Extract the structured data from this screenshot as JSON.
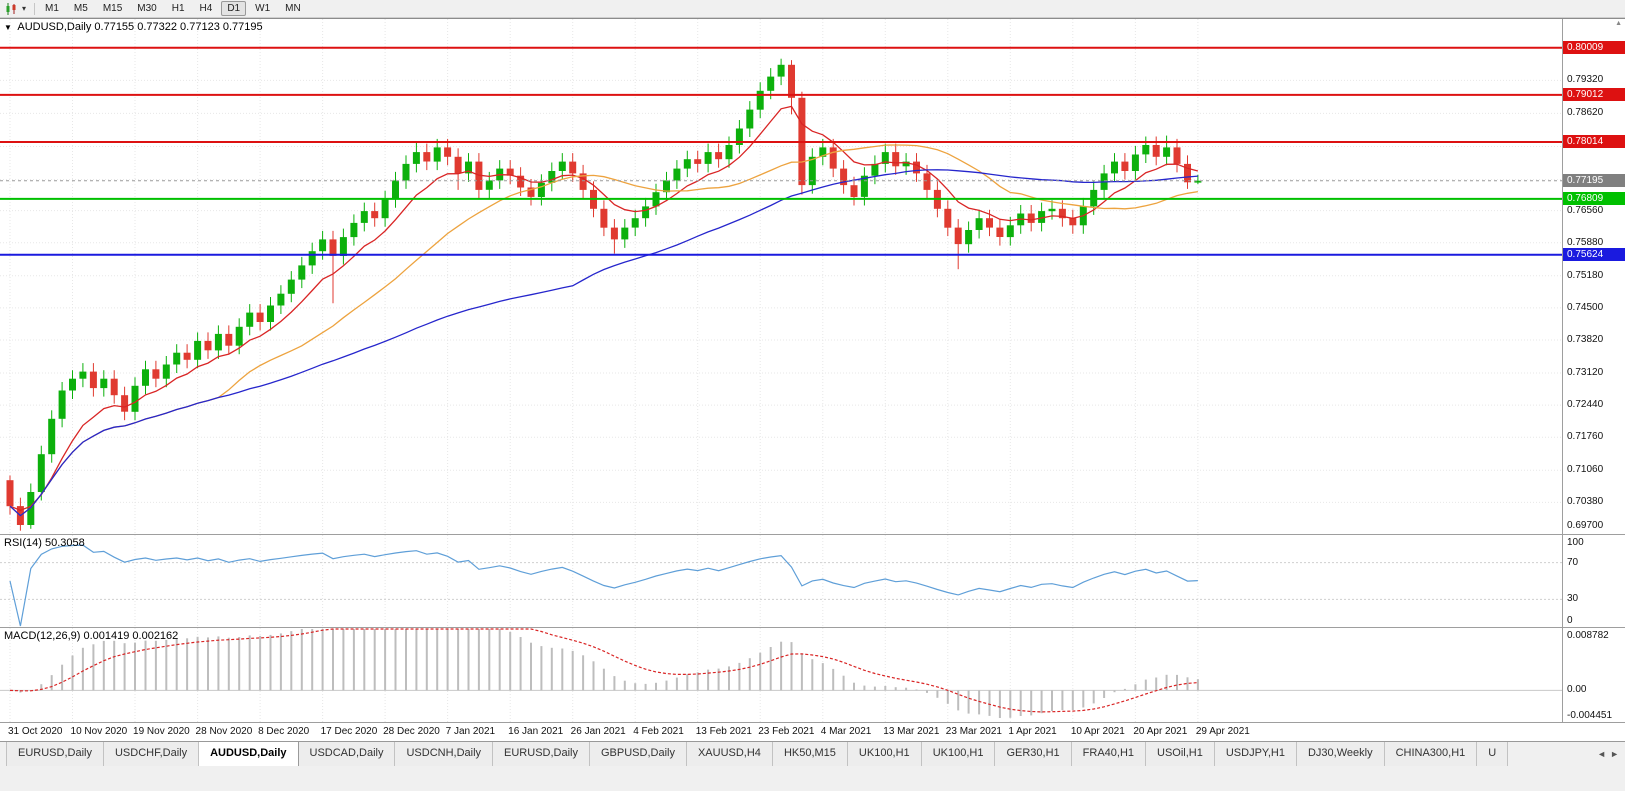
{
  "toolbar": {
    "timeframes": [
      {
        "label": "M1",
        "active": false
      },
      {
        "label": "M5",
        "active": false
      },
      {
        "label": "M15",
        "active": false
      },
      {
        "label": "M30",
        "active": false
      },
      {
        "label": "H1",
        "active": false
      },
      {
        "label": "H4",
        "active": false
      },
      {
        "label": "D1",
        "active": true
      },
      {
        "label": "W1",
        "active": false
      },
      {
        "label": "MN",
        "active": false
      }
    ]
  },
  "icons": {
    "timeframe_caret": "▾",
    "scroll_up": "▲",
    "tabs_scroll_left": "◄",
    "tabs_scroll_right": "►"
  },
  "chart_header": {
    "collapse_icon": "▼",
    "title": "AUDUSD,Daily",
    "ohlc": "0.77155 0.77322 0.77123 0.77195"
  },
  "chart_data": {
    "type": "candlestick",
    "symbol": "AUDUSD",
    "timeframe": "Daily",
    "grid": true,
    "ylim": [
      0.6971,
      0.8062
    ],
    "y_ticks": [
      "0.79320",
      "0.78620",
      "0.77920",
      "0.77220",
      "0.76560",
      "0.75880",
      "0.75180",
      "0.74500",
      "0.73820",
      "0.73120",
      "0.72440",
      "0.71760",
      "0.71060",
      "0.70380",
      "0.69700"
    ],
    "x_labels": [
      "31 Oct 2020",
      "10 Nov 2020",
      "19 Nov 2020",
      "28 Nov 2020",
      "8 Dec 2020",
      "17 Dec 2020",
      "28 Dec 2020",
      "7 Jan 2021",
      "16 Jan 2021",
      "26 Jan 2021",
      "4 Feb 2021",
      "13 Feb 2021",
      "23 Feb 2021",
      "4 Mar 2021",
      "13 Mar 2021",
      "23 Mar 2021",
      "1 Apr 2021",
      "10 Apr 2021",
      "20 Apr 2021",
      "29 Apr 2021"
    ],
    "bars_per_label": 6,
    "colors": {
      "up": "#0cb00c",
      "down": "#e03a30"
    },
    "candles": [
      [
        0.7085,
        0.7095,
        0.7012,
        0.703
      ],
      [
        0.703,
        0.7048,
        0.6978,
        0.699
      ],
      [
        0.699,
        0.7078,
        0.6982,
        0.706
      ],
      [
        0.706,
        0.7158,
        0.7042,
        0.714
      ],
      [
        0.714,
        0.7233,
        0.7122,
        0.7215
      ],
      [
        0.7215,
        0.7293,
        0.7197,
        0.7275
      ],
      [
        0.7275,
        0.7318,
        0.7257,
        0.73
      ],
      [
        0.73,
        0.7333,
        0.7282,
        0.7315
      ],
      [
        0.7315,
        0.7333,
        0.7262,
        0.728
      ],
      [
        0.728,
        0.7318,
        0.7262,
        0.73
      ],
      [
        0.73,
        0.7318,
        0.7247,
        0.7265
      ],
      [
        0.7265,
        0.7283,
        0.7212,
        0.723
      ],
      [
        0.723,
        0.7303,
        0.7212,
        0.7285
      ],
      [
        0.7285,
        0.7338,
        0.7267,
        0.732
      ],
      [
        0.732,
        0.7338,
        0.7282,
        0.73
      ],
      [
        0.73,
        0.7348,
        0.7282,
        0.733
      ],
      [
        0.733,
        0.7373,
        0.7312,
        0.7355
      ],
      [
        0.7355,
        0.7373,
        0.7322,
        0.734
      ],
      [
        0.734,
        0.7398,
        0.7322,
        0.738
      ],
      [
        0.738,
        0.7398,
        0.7342,
        0.736
      ],
      [
        0.736,
        0.7413,
        0.7342,
        0.7395
      ],
      [
        0.7395,
        0.7413,
        0.7352,
        0.737
      ],
      [
        0.737,
        0.7428,
        0.7352,
        0.741
      ],
      [
        0.741,
        0.7458,
        0.7392,
        0.744
      ],
      [
        0.744,
        0.7458,
        0.7402,
        0.742
      ],
      [
        0.742,
        0.7473,
        0.7402,
        0.7455
      ],
      [
        0.7455,
        0.7498,
        0.7437,
        0.748
      ],
      [
        0.748,
        0.7528,
        0.7462,
        0.751
      ],
      [
        0.751,
        0.7558,
        0.7492,
        0.754
      ],
      [
        0.754,
        0.7588,
        0.7522,
        0.757
      ],
      [
        0.757,
        0.7613,
        0.7552,
        0.7595
      ],
      [
        0.7595,
        0.7613,
        0.746,
        0.756
      ],
      [
        0.756,
        0.7618,
        0.7542,
        0.76
      ],
      [
        0.76,
        0.7648,
        0.7582,
        0.763
      ],
      [
        0.763,
        0.7673,
        0.7612,
        0.7655
      ],
      [
        0.7655,
        0.7673,
        0.7622,
        0.764
      ],
      [
        0.764,
        0.7698,
        0.7622,
        0.768
      ],
      [
        0.768,
        0.7738,
        0.7662,
        0.772
      ],
      [
        0.772,
        0.7773,
        0.7702,
        0.7755
      ],
      [
        0.7755,
        0.78,
        0.7737,
        0.778
      ],
      [
        0.778,
        0.7798,
        0.7742,
        0.776
      ],
      [
        0.776,
        0.7808,
        0.7742,
        0.779
      ],
      [
        0.779,
        0.7808,
        0.7752,
        0.777
      ],
      [
        0.777,
        0.7788,
        0.77,
        0.7735
      ],
      [
        0.7735,
        0.7778,
        0.7717,
        0.776
      ],
      [
        0.776,
        0.7778,
        0.7682,
        0.77
      ],
      [
        0.77,
        0.7738,
        0.7682,
        0.772
      ],
      [
        0.772,
        0.7763,
        0.7702,
        0.7745
      ],
      [
        0.7745,
        0.7763,
        0.7712,
        0.773
      ],
      [
        0.773,
        0.7748,
        0.7687,
        0.7705
      ],
      [
        0.7705,
        0.7723,
        0.7667,
        0.7685
      ],
      [
        0.7685,
        0.7733,
        0.7667,
        0.7715
      ],
      [
        0.7715,
        0.7758,
        0.7697,
        0.774
      ],
      [
        0.774,
        0.7778,
        0.7722,
        0.776
      ],
      [
        0.776,
        0.7778,
        0.7717,
        0.7735
      ],
      [
        0.7735,
        0.7753,
        0.7682,
        0.77
      ],
      [
        0.77,
        0.7718,
        0.7642,
        0.766
      ],
      [
        0.766,
        0.7678,
        0.7602,
        0.762
      ],
      [
        0.762,
        0.7638,
        0.7565,
        0.7595
      ],
      [
        0.7595,
        0.7638,
        0.7577,
        0.762
      ],
      [
        0.762,
        0.7658,
        0.7602,
        0.764
      ],
      [
        0.764,
        0.7683,
        0.7622,
        0.7665
      ],
      [
        0.7665,
        0.7713,
        0.7647,
        0.7695
      ],
      [
        0.7695,
        0.7738,
        0.7677,
        0.772
      ],
      [
        0.772,
        0.7763,
        0.7702,
        0.7745
      ],
      [
        0.7745,
        0.7783,
        0.7727,
        0.7765
      ],
      [
        0.7765,
        0.7783,
        0.7737,
        0.7755
      ],
      [
        0.7755,
        0.7798,
        0.7737,
        0.778
      ],
      [
        0.778,
        0.7798,
        0.7747,
        0.7765
      ],
      [
        0.7765,
        0.7813,
        0.7747,
        0.7795
      ],
      [
        0.7795,
        0.7848,
        0.7777,
        0.783
      ],
      [
        0.783,
        0.7888,
        0.7812,
        0.787
      ],
      [
        0.787,
        0.7928,
        0.7852,
        0.791
      ],
      [
        0.791,
        0.7958,
        0.7892,
        0.794
      ],
      [
        0.794,
        0.7978,
        0.7922,
        0.7965
      ],
      [
        0.7965,
        0.7975,
        0.786,
        0.7895
      ],
      [
        0.7895,
        0.7908,
        0.769,
        0.771
      ],
      [
        0.771,
        0.7788,
        0.7692,
        0.777
      ],
      [
        0.777,
        0.7808,
        0.7752,
        0.779
      ],
      [
        0.779,
        0.7808,
        0.7727,
        0.7745
      ],
      [
        0.7745,
        0.7763,
        0.7692,
        0.771
      ],
      [
        0.771,
        0.7728,
        0.7667,
        0.7685
      ],
      [
        0.7685,
        0.7748,
        0.7667,
        0.773
      ],
      [
        0.773,
        0.7773,
        0.7712,
        0.7755
      ],
      [
        0.7755,
        0.7798,
        0.7737,
        0.778
      ],
      [
        0.778,
        0.7798,
        0.7732,
        0.775
      ],
      [
        0.775,
        0.7778,
        0.7732,
        0.776
      ],
      [
        0.776,
        0.7778,
        0.7717,
        0.7735
      ],
      [
        0.7735,
        0.7753,
        0.7682,
        0.77
      ],
      [
        0.77,
        0.7718,
        0.7642,
        0.766
      ],
      [
        0.766,
        0.7678,
        0.7602,
        0.762
      ],
      [
        0.762,
        0.7638,
        0.7532,
        0.7585
      ],
      [
        0.7585,
        0.7633,
        0.7567,
        0.7615
      ],
      [
        0.7615,
        0.7658,
        0.7597,
        0.764
      ],
      [
        0.764,
        0.7658,
        0.7602,
        0.762
      ],
      [
        0.762,
        0.7638,
        0.7582,
        0.76
      ],
      [
        0.76,
        0.7643,
        0.7582,
        0.7625
      ],
      [
        0.7625,
        0.7668,
        0.7607,
        0.765
      ],
      [
        0.765,
        0.7668,
        0.7612,
        0.763
      ],
      [
        0.763,
        0.7673,
        0.7612,
        0.7655
      ],
      [
        0.7655,
        0.7678,
        0.7637,
        0.766
      ],
      [
        0.766,
        0.7678,
        0.7622,
        0.764
      ],
      [
        0.764,
        0.7658,
        0.7607,
        0.7625
      ],
      [
        0.7625,
        0.7683,
        0.7607,
        0.7665
      ],
      [
        0.7665,
        0.7718,
        0.7647,
        0.77
      ],
      [
        0.77,
        0.7753,
        0.7682,
        0.7735
      ],
      [
        0.7735,
        0.7778,
        0.7717,
        0.776
      ],
      [
        0.776,
        0.7778,
        0.7722,
        0.774
      ],
      [
        0.774,
        0.7793,
        0.7722,
        0.7775
      ],
      [
        0.7775,
        0.7813,
        0.7757,
        0.7795
      ],
      [
        0.7795,
        0.7813,
        0.7752,
        0.777
      ],
      [
        0.777,
        0.7815,
        0.7752,
        0.779
      ],
      [
        0.779,
        0.7808,
        0.7737,
        0.7755
      ],
      [
        0.7755,
        0.7773,
        0.7702,
        0.7716
      ],
      [
        0.77155,
        0.77322,
        0.77123,
        0.77195
      ]
    ],
    "moving_averages": [
      {
        "type": "ema",
        "period": 8,
        "color": "#d92525"
      },
      {
        "type": "sma",
        "period": 21,
        "color": "#eda33f"
      },
      {
        "type": "sma",
        "period": 55,
        "color": "#2626cc"
      }
    ],
    "levels": [
      {
        "value": 0.80009,
        "label": "0.80009",
        "color": "#dd1111"
      },
      {
        "value": 0.79012,
        "label": "0.79012",
        "color": "#dd1111"
      },
      {
        "value": 0.78014,
        "label": "0.78014",
        "color": "#dd1111"
      },
      {
        "value": 0.76809,
        "label": "0.76809",
        "color": "#00c000"
      },
      {
        "value": 0.75624,
        "label": "0.75624",
        "color": "#1a1adf"
      }
    ],
    "current_price": {
      "value": 0.77195,
      "label": "0.77195",
      "color": "#808080"
    },
    "indicators": [
      {
        "name": "RSI",
        "label": "RSI(14) 50.3058",
        "period": 14,
        "color": "#5f9fd8",
        "levels": [
          70,
          30
        ],
        "scale": [
          "100",
          "70",
          "30",
          "0"
        ],
        "range": [
          0,
          100
        ]
      },
      {
        "name": "MACD",
        "label": "MACD(12,26,9) 0.001419 0.002162",
        "fast": 12,
        "slow": 26,
        "signal": 9,
        "scale": [
          "0.008782",
          "0.00",
          "-0.004451"
        ],
        "range": [
          -0.004451,
          0.008782
        ],
        "histogram_color": "#bdbdbd",
        "signal_color": "#d92525"
      }
    ]
  },
  "tabs": {
    "items": [
      {
        "label": "EURUSD,Daily",
        "active": false
      },
      {
        "label": "USDCHF,Daily",
        "active": false
      },
      {
        "label": "AUDUSD,Daily",
        "active": true
      },
      {
        "label": "USDCAD,Daily",
        "active": false
      },
      {
        "label": "USDCNH,Daily",
        "active": false
      },
      {
        "label": "EURUSD,Daily",
        "active": false
      },
      {
        "label": "GBPUSD,Daily",
        "active": false
      },
      {
        "label": "XAUUSD,H4",
        "active": false
      },
      {
        "label": "HK50,M15",
        "active": false
      },
      {
        "label": "UK100,H1",
        "active": false
      },
      {
        "label": "UK100,H1",
        "active": false
      },
      {
        "label": "GER30,H1",
        "active": false
      },
      {
        "label": "FRA40,H1",
        "active": false
      },
      {
        "label": "USOil,H1",
        "active": false
      },
      {
        "label": "USDJPY,H1",
        "active": false
      },
      {
        "label": "DJ30,Weekly",
        "active": false
      },
      {
        "label": "CHINA300,H1",
        "active": false
      },
      {
        "label": "U",
        "active": false
      }
    ]
  }
}
